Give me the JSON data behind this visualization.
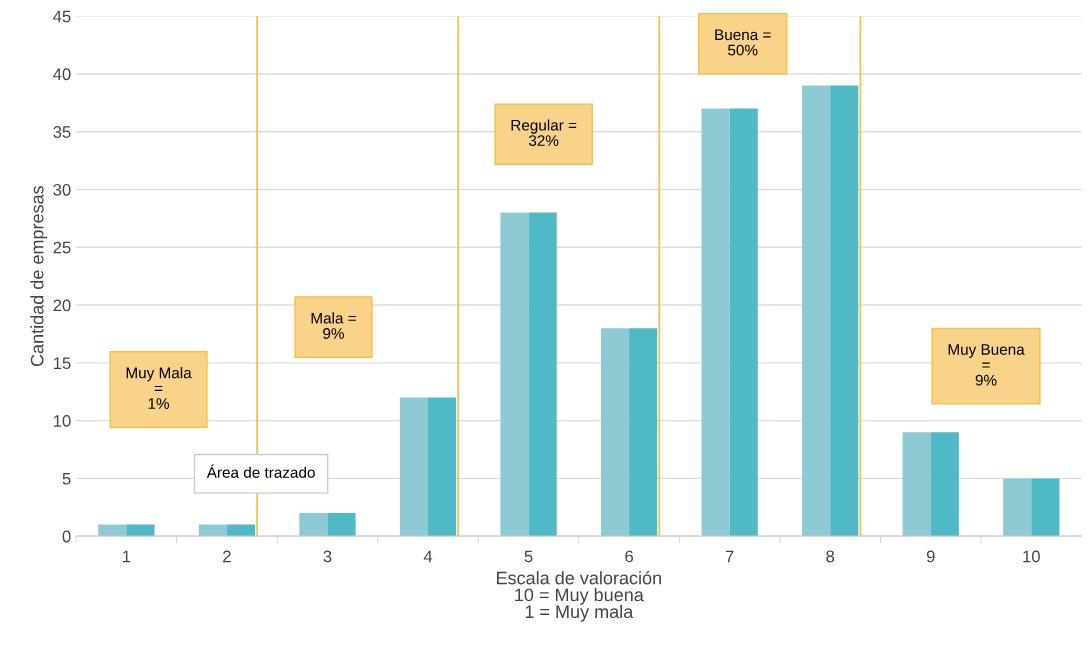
{
  "chart_data": {
    "type": "bar",
    "x": [
      1,
      2,
      3,
      4,
      5,
      6,
      7,
      8,
      9,
      10
    ],
    "series": [
      {
        "color": "#8ecad3",
        "values": [
          1,
          1,
          2,
          12,
          28,
          18,
          37,
          39,
          9,
          5
        ]
      },
      {
        "color": "#4fbac5",
        "values": [
          1,
          1,
          2,
          12,
          28,
          18,
          37,
          39,
          9,
          5
        ]
      }
    ],
    "xlabel": "Escala de valoración\n10 = Muy buena\n1 = Muy mala",
    "ylabel": "Cantidad de empresas",
    "xlim": [
      0.5,
      10.5
    ],
    "xticks": [
      1,
      2,
      3,
      4,
      5,
      6,
      7,
      8,
      9,
      10,
      {
        "value": 0.5,
        "label": null
      },
      {
        "value": 1.5,
        "label": null
      },
      {
        "value": 2.5,
        "label": null
      },
      {
        "value": 3.5,
        "label": null
      },
      {
        "value": 4.5,
        "label": null
      },
      {
        "value": 5.5,
        "label": null
      },
      {
        "value": 6.5,
        "label": null
      },
      {
        "value": 7.5,
        "label": null
      },
      {
        "value": 8.5,
        "label": null
      },
      {
        "value": 9.5,
        "label": null
      }
    ],
    "ylim": [
      0,
      45
    ],
    "yticks": [
      0,
      5,
      10,
      15,
      20,
      25,
      30,
      35,
      40,
      45
    ],
    "grid": "y",
    "ref_lines": [
      {
        "axis": "x",
        "value": 2.3,
        "color": "#f5c040"
      },
      {
        "axis": "x",
        "value": 4.3,
        "color": "#f5c040"
      },
      {
        "axis": "x",
        "value": 6.3,
        "color": "#f5c040"
      },
      {
        "axis": "x",
        "value": 8.3,
        "color": "#f5c040"
      }
    ],
    "annotations": [
      "Muy Mala\n=\n1%",
      "Mala =\n9%",
      "Regular =\n32%",
      "Buena =\n50%",
      "Muy Buena\n=\n9%",
      "Área de trazado"
    ]
  }
}
